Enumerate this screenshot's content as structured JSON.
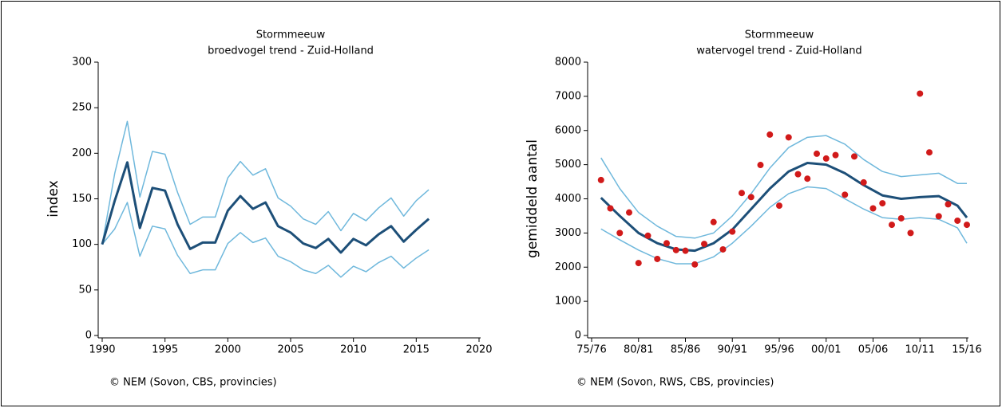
{
  "chart_data": [
    {
      "type": "line",
      "title": "Stormmeeuw",
      "subtitle": "broedvogel trend - Zuid-Holland",
      "y_label": "index",
      "source": "© NEM (Sovon, CBS, provincies)",
      "x": [
        1990,
        1991,
        1992,
        1993,
        1994,
        1995,
        1996,
        1997,
        1998,
        1999,
        2000,
        2001,
        2002,
        2003,
        2004,
        2005,
        2006,
        2007,
        2008,
        2009,
        2010,
        2011,
        2012,
        2013,
        2014,
        2015,
        2016
      ],
      "series": [
        {
          "color": "#6fb8dc",
          "width": 1.5,
          "values": [
            100,
            178,
            235,
            152,
            202,
            199,
            157,
            122,
            130,
            130,
            173,
            191,
            176,
            183,
            151,
            142,
            128,
            122,
            136,
            115,
            134,
            126,
            140,
            151,
            131,
            148,
            160
          ]
        },
        {
          "color": "#6fb8dc",
          "width": 1.5,
          "values": [
            100,
            117,
            146,
            87,
            120,
            117,
            88,
            68,
            72,
            72,
            101,
            113,
            102,
            107,
            87,
            81,
            72,
            68,
            77,
            64,
            76,
            70,
            80,
            87,
            74,
            85,
            94
          ]
        },
        {
          "color": "#1d4f78",
          "width": 3,
          "values": [
            100,
            148,
            190,
            118,
            162,
            159,
            122,
            95,
            102,
            102,
            137,
            153,
            139,
            146,
            120,
            113,
            101,
            96,
            106,
            91,
            106,
            99,
            111,
            120,
            103,
            116,
            128
          ]
        }
      ],
      "xlim": [
        1990,
        2020
      ],
      "xticks": [
        1990,
        1995,
        2000,
        2005,
        2010,
        2015,
        2020
      ],
      "ylim": [
        0,
        300
      ],
      "yticks": [
        0,
        50,
        100,
        150,
        200,
        250,
        300
      ]
    },
    {
      "type": "scatter",
      "title": "Stormmeeuw",
      "subtitle": "watervogel trend - Zuid-Holland",
      "y_label": "gemiddeld aantal",
      "source": "© NEM (Sovon, RWS, CBS, provincies)",
      "series": [
        {
          "mode": "line",
          "color": "#6fb8dc",
          "width": 1.5,
          "x": [
            1976,
            1978,
            1980,
            1982,
            1984,
            1986,
            1988,
            1990,
            1992,
            1994,
            1996,
            1998,
            2000,
            2002,
            2004,
            2006,
            2008,
            2010,
            2012,
            2014,
            2015
          ],
          "values": [
            5200,
            4300,
            3600,
            3200,
            2900,
            2850,
            3000,
            3500,
            4150,
            4900,
            5500,
            5800,
            5850,
            5600,
            5150,
            4800,
            4650,
            4700,
            4750,
            4450,
            4450
          ]
        },
        {
          "mode": "line",
          "color": "#6fb8dc",
          "width": 1.5,
          "x": [
            1976,
            1978,
            1980,
            1982,
            1984,
            1986,
            1988,
            1990,
            1992,
            1994,
            1996,
            1998,
            2000,
            2002,
            2004,
            2006,
            2008,
            2010,
            2012,
            2014,
            2015
          ],
          "values": [
            3120,
            2800,
            2500,
            2250,
            2100,
            2100,
            2300,
            2700,
            3200,
            3750,
            4150,
            4350,
            4300,
            4000,
            3700,
            3450,
            3400,
            3450,
            3400,
            3150,
            2700
          ]
        },
        {
          "mode": "line",
          "color": "#1d4f78",
          "width": 3,
          "x": [
            1976,
            1978,
            1980,
            1982,
            1984,
            1986,
            1988,
            1990,
            1992,
            1994,
            1996,
            1998,
            2000,
            2002,
            2004,
            2006,
            2008,
            2010,
            2012,
            2014,
            2015
          ],
          "values": [
            4030,
            3500,
            3000,
            2700,
            2520,
            2480,
            2700,
            3100,
            3700,
            4300,
            4800,
            5050,
            5000,
            4750,
            4400,
            4100,
            4000,
            4050,
            4080,
            3800,
            3450
          ]
        },
        {
          "mode": "markers",
          "color": "#d11a1a",
          "x": [
            1976,
            1977,
            1978,
            1979,
            1980,
            1981,
            1982,
            1983,
            1984,
            1985,
            1986,
            1987,
            1988,
            1989,
            1990,
            1991,
            1992,
            1993,
            1994,
            1995,
            1996,
            1997,
            1998,
            1999,
            2000,
            2001,
            2002,
            2003,
            2004,
            2005,
            2006,
            2007,
            2008,
            2009,
            2010,
            2011,
            2012,
            2013,
            2014,
            2015
          ],
          "values": [
            4550,
            3720,
            3000,
            3600,
            2120,
            2920,
            2240,
            2700,
            2500,
            2480,
            2080,
            2680,
            3320,
            2520,
            3040,
            4170,
            4050,
            4990,
            5880,
            3800,
            5800,
            4720,
            4590,
            5320,
            5180,
            5280,
            4120,
            5240,
            4480,
            3720,
            3870,
            3240,
            3430,
            3000,
            7080,
            5360,
            3490,
            3840,
            3360,
            3240
          ]
        }
      ],
      "xlim": [
        1975,
        2015
      ],
      "xticks": [
        {
          "value": 1975,
          "label": "75/76"
        },
        {
          "value": 1980,
          "label": "80/81"
        },
        {
          "value": 1985,
          "label": "85/86"
        },
        {
          "value": 1990,
          "label": "90/91"
        },
        {
          "value": 1995,
          "label": "95/96"
        },
        {
          "value": 2000,
          "label": "00/01"
        },
        {
          "value": 2005,
          "label": "05/06"
        },
        {
          "value": 2010,
          "label": "10/11"
        },
        {
          "value": 2015,
          "label": "15/16"
        }
      ],
      "ylim": [
        0,
        8000
      ],
      "yticks": [
        0,
        1000,
        2000,
        3000,
        4000,
        5000,
        6000,
        7000,
        8000
      ]
    }
  ]
}
